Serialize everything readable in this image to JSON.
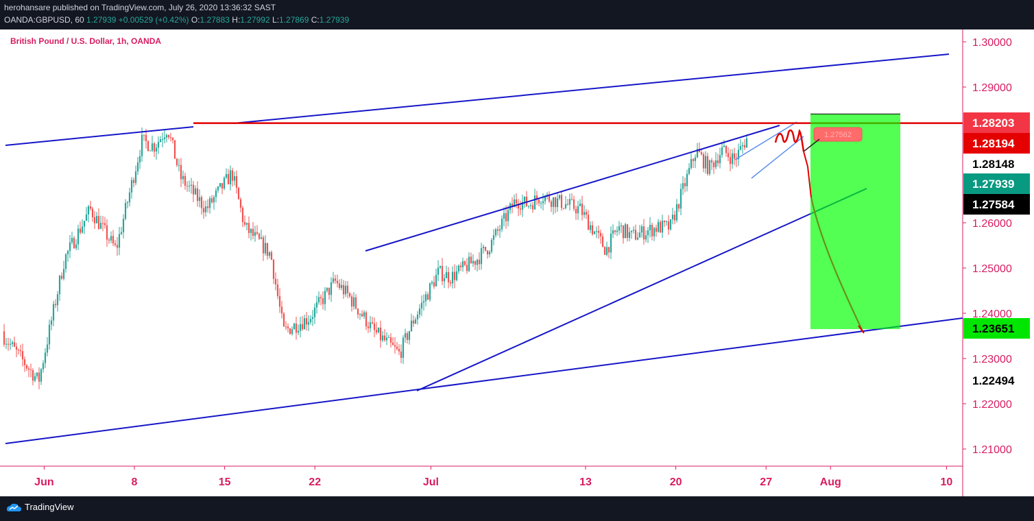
{
  "header": {
    "publisher_line": "herohansare published on TradingView.com, July 26, 2020 13:36:32 SAST",
    "publisher_name": "herohansare",
    "symbol": "OANDA:GBPUSD, 60",
    "last": "1.27939",
    "change": "+0.00529 (+0.42%)",
    "open_label": "O:",
    "open": "1.27883",
    "high_label": "H:",
    "high": "1.27992",
    "low_label": "L:",
    "low": "1.27869",
    "close_label": "C:",
    "close": "1.27939"
  },
  "chart_title": "British Pound / U.S. Dollar, 1h, OANDA",
  "footer": {
    "brand": "TradingView"
  },
  "chart_data": {
    "type": "candlestick",
    "title": "British Pound / U.S. Dollar, 1h, OANDA",
    "y_ticks": [
      "1.30000",
      "1.29000",
      "1.26000",
      "1.25000",
      "1.24000",
      "1.23000",
      "1.22000",
      "1.21000"
    ],
    "x_ticks": [
      "Jun",
      "8",
      "15",
      "22",
      "Jul",
      "13",
      "20",
      "27",
      "Aug",
      "10"
    ],
    "price_labels": [
      {
        "value": "1.28203",
        "bg": "#f23645",
        "fg": "#ffffff"
      },
      {
        "value": "1.28194",
        "bg": "#e50000",
        "fg": "#ffffff"
      },
      {
        "value": "1.28148",
        "bg": "#ffffff",
        "fg": "#000000"
      },
      {
        "value": "1.27939",
        "bg": "#089981",
        "fg": "#ffffff"
      },
      {
        "value": "1.27584",
        "bg": "#000000",
        "fg": "#ffffff"
      },
      {
        "value": "1.23651",
        "bg": "#00e600",
        "fg": "#000000"
      },
      {
        "value": "1.22494",
        "bg": "#ffffff",
        "fg": "#000000"
      }
    ],
    "price_path": [
      [
        "May 29",
        1.236
      ],
      [
        "Jun 1",
        1.225
      ],
      [
        "Jun 3",
        1.252
      ],
      [
        "Jun 5",
        1.263
      ],
      [
        "Jun 7",
        1.254
      ],
      [
        "Jun 9",
        1.278
      ],
      [
        "Jun 10",
        1.277
      ],
      [
        "Jun 11",
        1.281
      ],
      [
        "Jun 12",
        1.27
      ],
      [
        "Jun 14",
        1.263
      ],
      [
        "Jun 16",
        1.271
      ],
      [
        "Jun 17",
        1.259
      ],
      [
        "Jun 19",
        1.253
      ],
      [
        "Jun 20",
        1.236
      ],
      [
        "Jun 22",
        1.239
      ],
      [
        "Jun 24",
        1.247
      ],
      [
        "Jun 25",
        1.244
      ],
      [
        "Jun 27",
        1.236
      ],
      [
        "Jun 29",
        1.231
      ],
      [
        "Jun 30",
        1.238
      ],
      [
        "Jul 2",
        1.249
      ],
      [
        "Jul 3",
        1.248
      ],
      [
        "Jul 5",
        1.252
      ],
      [
        "Jul 6",
        1.255
      ],
      [
        "Jul 8",
        1.265
      ],
      [
        "Jul 9",
        1.264
      ],
      [
        "Jul 10",
        1.266
      ],
      [
        "Jul 12",
        1.264
      ],
      [
        "Jul 13",
        1.263
      ],
      [
        "Jul 15",
        1.254
      ],
      [
        "Jul 16",
        1.259
      ],
      [
        "Jul 17",
        1.257
      ],
      [
        "Jul 19",
        1.259
      ],
      [
        "Jul 20",
        1.259
      ],
      [
        "Jul 22",
        1.276
      ],
      [
        "Jul 23",
        1.272
      ],
      [
        "Jul 24",
        1.276
      ],
      [
        "Jul 25",
        1.274
      ],
      [
        "Jul 26",
        1.279
      ]
    ],
    "drawings": {
      "horizontal_resistance": 1.28203,
      "short_position": {
        "entry": 1.28148,
        "stop": 1.28194,
        "target": 1.23651,
        "entry_label": "1.27562"
      }
    },
    "candle_color_up": "#26a69a",
    "candle_color_down": "#ef5350"
  }
}
